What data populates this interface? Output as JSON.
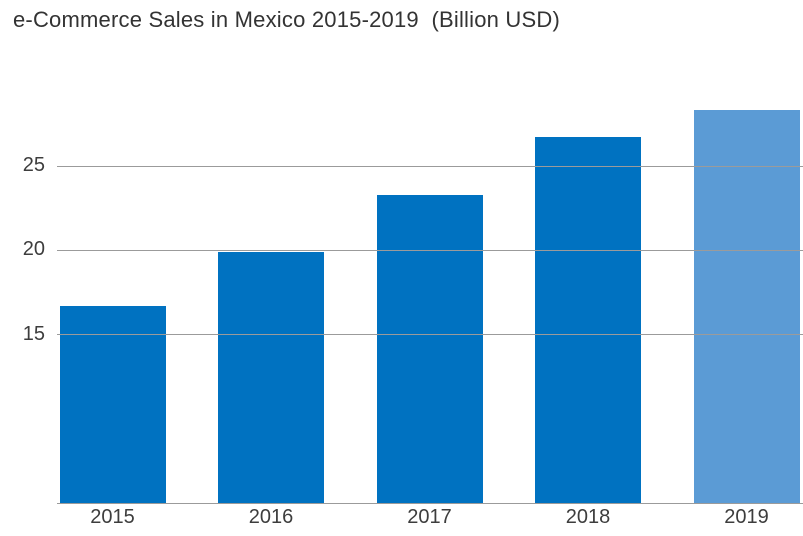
{
  "title": "e-Commerce Sales in Mexico 2015-2019  (Billion USD)",
  "colors": {
    "background": "#FFFFFF",
    "bar": "#0072C1",
    "bar_highlight": "#5B9BD5",
    "gridline": "#9B9B9B",
    "axis_line": "#9B9B9B",
    "tick_text": "#3D3D3D",
    "title_text": "#333333"
  },
  "chart_data": {
    "type": "bar",
    "title": "e-Commerce Sales in Mexico 2015-2019  (Billion USD)",
    "unit": "Billion USD",
    "categories": [
      "2015",
      "2016",
      "2017",
      "2018",
      "2019"
    ],
    "values": [
      16.7,
      19.9,
      23.3,
      26.7,
      28.3
    ],
    "highlighted_category": "2019",
    "xlabel": "",
    "ylabel": "",
    "y_ticks": [
      15,
      20,
      25
    ],
    "ylim": [
      5,
      30
    ],
    "grid": "horizontal-only, ticks 15/20/25, drawn over bars",
    "legend": "none"
  }
}
